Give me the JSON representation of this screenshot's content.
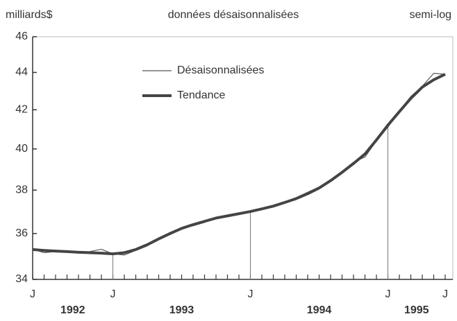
{
  "chart_data": {
    "type": "line",
    "title": "données désaisonnalisées",
    "y_axis_label": "milliards$",
    "scale_note": "semi-log",
    "log_scale": true,
    "categories": [
      "J",
      null,
      null,
      null,
      null,
      null,
      null,
      "J",
      null,
      null,
      null,
      null,
      null,
      null,
      null,
      null,
      null,
      null,
      null,
      "J",
      null,
      null,
      null,
      null,
      null,
      null,
      null,
      null,
      null,
      null,
      null,
      "J",
      null,
      null,
      null,
      null,
      "J"
    ],
    "x_group_labels": [
      "1992",
      "1993",
      "1994",
      "1995"
    ],
    "series": [
      {
        "name": "Désaisonnalisées",
        "color": "#555555",
        "values": [
          35.3,
          35.15,
          35.2,
          35.22,
          35.15,
          35.2,
          35.3,
          35.1,
          35.05,
          35.25,
          35.45,
          35.8,
          36.05,
          36.25,
          36.35,
          36.5,
          36.7,
          36.82,
          36.9,
          37.0,
          37.1,
          37.25,
          37.45,
          37.65,
          37.9,
          38.15,
          38.5,
          38.9,
          39.35,
          39.6,
          40.4,
          41.1,
          41.95,
          42.7,
          43.25,
          43.95,
          43.9
        ]
      },
      {
        "name": "Tendance",
        "color": "#444444",
        "values": [
          35.29,
          35.25,
          35.22,
          35.2,
          35.17,
          35.15,
          35.13,
          35.1,
          35.15,
          35.29,
          35.5,
          35.76,
          36.0,
          36.23,
          36.4,
          36.55,
          36.7,
          36.8,
          36.9,
          37.0,
          37.12,
          37.25,
          37.42,
          37.6,
          37.83,
          38.1,
          38.45,
          38.85,
          39.28,
          39.75,
          40.45,
          41.2,
          41.9,
          42.6,
          43.2,
          43.6,
          43.9
        ]
      }
    ],
    "ylim": [
      34,
      46
    ],
    "yticks": [
      34,
      36,
      38,
      40,
      42,
      44,
      46
    ]
  }
}
